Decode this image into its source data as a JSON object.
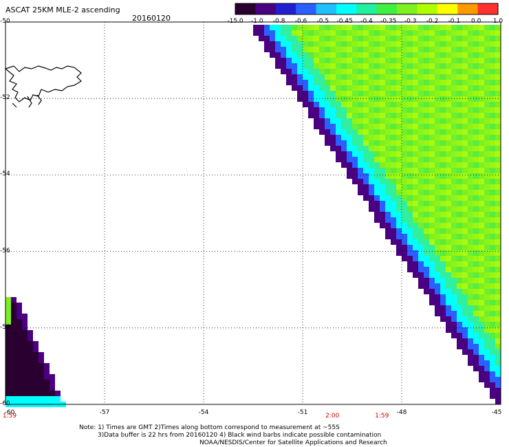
{
  "header": {
    "title": "ASCAT 25KM MLE-2 ascending",
    "date": "20160120"
  },
  "colorbar": {
    "labels": [
      "-15.0",
      "-1.0",
      "-0.8",
      "-0.6",
      "-0.5",
      "-0.45",
      "-0.4",
      "-0.35",
      "-0.3",
      "-0.2",
      "-0.1",
      "0.0",
      "1.0"
    ],
    "colors": [
      "#2a0030",
      "#4b0082",
      "#2020d0",
      "#2a60ff",
      "#20c0ff",
      "#00ffff",
      "#20f0a0",
      "#40f040",
      "#7ef020",
      "#b0ff00",
      "#ffff00",
      "#ff9900",
      "#ff3030"
    ]
  },
  "axes": {
    "x_ticks": [
      "-60",
      "-57",
      "-54",
      "-51",
      "-48",
      "-45"
    ],
    "y_ticks": [
      "-50",
      "-52",
      "-54",
      "-56",
      "-58",
      "-60"
    ],
    "lon_range": [
      -60,
      -45
    ],
    "lat_range": [
      -60,
      -50
    ]
  },
  "times": [
    {
      "label": "1:59",
      "lon": -60
    },
    {
      "label": "2:00",
      "lon": -50.1
    },
    {
      "label": "1:59",
      "lon": -48.6
    }
  ],
  "notes": {
    "line1": "Note: 1) Times are GMT 2)Times along bottom correspond to measurement at ~55S",
    "line2": "3)Data buffer is 22 hrs from 20160120 4) Black wind barbs indicate possible contamination",
    "line3": "NOAA/NESDIS/Center for Satellite Applications and Research"
  }
}
